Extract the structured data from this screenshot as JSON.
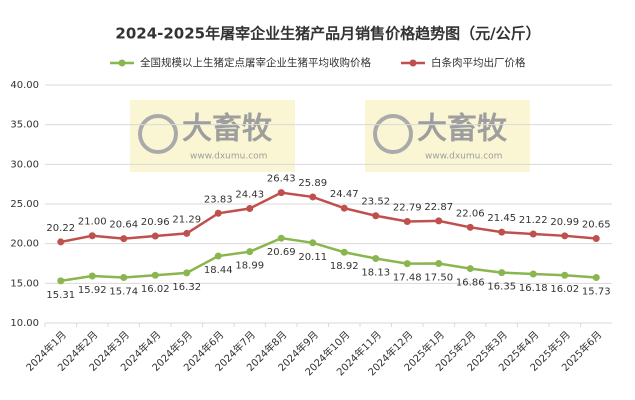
{
  "chart_data": {
    "type": "line",
    "title": "2024-2025年屠宰企业生猪产品月销售价格趋势图（元/公斤）",
    "watermark": {
      "brand": "大畜牧",
      "url": "www.dxumu.com"
    },
    "categories": [
      "2024年1月",
      "2024年2月",
      "2024年3月",
      "2024年4月",
      "2024年5月",
      "2024年6月",
      "2024年7月",
      "2024年8月",
      "2024年9月",
      "2024年10月",
      "2024年11月",
      "2024年12月",
      "2025年1月",
      "2025年2月",
      "2025年3月",
      "2025年4月",
      "2025年5月",
      "2025年6月"
    ],
    "series": [
      {
        "name": "全国规模以上生猪定点屠宰企业生猪平均收购价格",
        "color": "#8ab650",
        "values": [
          15.31,
          15.92,
          15.74,
          16.02,
          16.32,
          18.44,
          18.99,
          20.69,
          20.11,
          18.92,
          18.13,
          17.48,
          17.5,
          16.86,
          16.35,
          16.18,
          16.02,
          15.73
        ],
        "value_labels": [
          "15.31",
          "15.92",
          "15.74",
          "16.02",
          "16.32",
          "18.44",
          "18.99",
          "20.69",
          "20.11",
          "18.92",
          "18.13",
          "17.48",
          "17.50",
          "16.86",
          "16.35",
          "16.18",
          "16.02",
          "15.73"
        ]
      },
      {
        "name": "白条肉平均出厂价格",
        "color": "#c0504d",
        "values": [
          20.22,
          21,
          20.64,
          20.96,
          21.29,
          23.83,
          24.43,
          26.43,
          25.89,
          24.47,
          23.52,
          22.79,
          22.87,
          22.06,
          21.45,
          21.22,
          20.99,
          20.65
        ],
        "value_labels": [
          "20.22",
          "21.00",
          "20.64",
          "20.96",
          "21.29",
          "23.83",
          "24.43",
          "26.43",
          "25.89",
          "24.47",
          "23.52",
          "22.79",
          "22.87",
          "22.06",
          "21.45",
          "21.22",
          "20.99",
          "20.65"
        ]
      }
    ],
    "ylim": [
      10,
      40
    ],
    "yticks": [
      {
        "value": 10,
        "label": "10.00"
      },
      {
        "value": 15,
        "label": "15.00"
      },
      {
        "value": 20,
        "label": "20.00"
      },
      {
        "value": 25,
        "label": "25.00"
      },
      {
        "value": 30,
        "label": "30.00"
      },
      {
        "value": 35,
        "label": "35.00"
      },
      {
        "value": 40,
        "label": "40.00"
      }
    ],
    "grid": true,
    "legend": "top"
  }
}
